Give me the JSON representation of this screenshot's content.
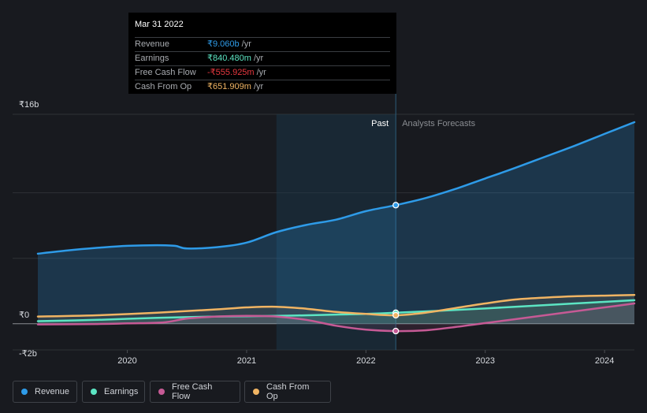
{
  "tooltip": {
    "date": "Mar 31 2022",
    "rows": [
      {
        "label": "Revenue",
        "value": "₹9.060b",
        "unit": "/yr",
        "color": "#2e9be8"
      },
      {
        "label": "Earnings",
        "value": "₹840.480m",
        "unit": "/yr",
        "color": "#5ce5c3"
      },
      {
        "label": "Free Cash Flow",
        "value": "-₹555.925m",
        "unit": "/yr",
        "color": "#e8383f"
      },
      {
        "label": "Cash From Op",
        "value": "₹651.909m",
        "unit": "/yr",
        "color": "#f0b463"
      }
    ]
  },
  "legend": [
    {
      "label": "Revenue",
      "color": "#2e9be8"
    },
    {
      "label": "Earnings",
      "color": "#5ce5c3"
    },
    {
      "label": "Free Cash Flow",
      "color": "#c65a95"
    },
    {
      "label": "Cash From Op",
      "color": "#f0b463"
    }
  ],
  "chart_data": {
    "type": "line",
    "title": "",
    "y_tick_labels": [
      "₹16b",
      "₹0",
      "-₹2b"
    ],
    "y_ticks": [
      16,
      0,
      -2
    ],
    "ylim": [
      -2,
      16
    ],
    "xlim": [
      2019.25,
      2024.25
    ],
    "x_tick_labels": [
      "2020",
      "2021",
      "2022",
      "2023",
      "2024"
    ],
    "x_ticks": [
      2020,
      2021,
      2022,
      2023,
      2024
    ],
    "past_label": "Past",
    "forecast_label": "Analysts Forecasts",
    "current_x": 2022.25,
    "highlight_start_x": 2021.25,
    "series": [
      {
        "name": "Revenue",
        "color": "#2e9be8",
        "x": [
          2019.25,
          2019.5,
          2019.75,
          2020.0,
          2020.25,
          2020.4,
          2020.5,
          2020.75,
          2021.0,
          2021.25,
          2021.5,
          2021.75,
          2022.0,
          2022.25,
          2022.5,
          2022.75,
          2023.0,
          2023.25,
          2023.5,
          2023.75,
          2024.0,
          2024.25
        ],
        "values": [
          5.35,
          5.6,
          5.8,
          5.95,
          6.0,
          5.95,
          5.75,
          5.85,
          6.2,
          7.0,
          7.55,
          7.95,
          8.6,
          9.06,
          9.6,
          10.3,
          11.1,
          11.9,
          12.75,
          13.6,
          14.5,
          15.4
        ]
      },
      {
        "name": "Earnings",
        "color": "#5ce5c3",
        "x": [
          2019.25,
          2019.75,
          2020.25,
          2020.75,
          2021.25,
          2021.75,
          2022.0,
          2022.25,
          2022.75,
          2023.25,
          2023.75,
          2024.25
        ],
        "values": [
          0.2,
          0.3,
          0.45,
          0.55,
          0.6,
          0.7,
          0.75,
          0.84,
          1.05,
          1.3,
          1.55,
          1.8
        ]
      },
      {
        "name": "Free Cash Flow",
        "color": "#c65a95",
        "x": [
          2019.25,
          2019.75,
          2020.0,
          2020.3,
          2020.5,
          2020.75,
          2021.0,
          2021.25,
          2021.5,
          2021.75,
          2022.0,
          2022.25,
          2022.5,
          2022.75,
          2023.0,
          2023.25,
          2023.5,
          2023.75,
          2024.0,
          2024.25
        ],
        "values": [
          -0.05,
          -0.02,
          0.03,
          0.1,
          0.4,
          0.55,
          0.6,
          0.55,
          0.3,
          -0.15,
          -0.45,
          -0.56,
          -0.5,
          -0.25,
          0.05,
          0.35,
          0.65,
          0.95,
          1.25,
          1.55
        ]
      },
      {
        "name": "Cash From Op",
        "color": "#f0b463",
        "x": [
          2019.25,
          2019.75,
          2020.25,
          2020.75,
          2021.0,
          2021.25,
          2021.5,
          2021.75,
          2022.0,
          2022.25,
          2022.5,
          2022.75,
          2023.0,
          2023.25,
          2023.5,
          2023.75,
          2024.0,
          2024.25
        ],
        "values": [
          0.55,
          0.65,
          0.85,
          1.1,
          1.25,
          1.3,
          1.15,
          0.9,
          0.75,
          0.65,
          0.85,
          1.2,
          1.55,
          1.85,
          2.0,
          2.1,
          2.15,
          2.2
        ]
      }
    ],
    "markers": [
      {
        "series": "Revenue",
        "x": 2022.25,
        "value": 9.06
      },
      {
        "series": "Earnings",
        "x": 2022.25,
        "value": 0.84
      },
      {
        "series": "Free Cash Flow",
        "x": 2022.25,
        "value": -0.556
      },
      {
        "series": "Cash From Op",
        "x": 2022.25,
        "value": 0.652
      }
    ]
  }
}
